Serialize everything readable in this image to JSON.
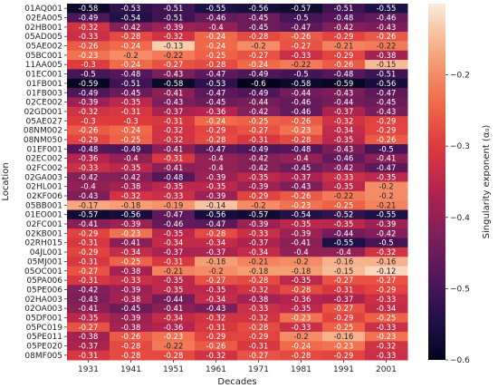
{
  "chart_data": {
    "type": "heatmap",
    "xlabel": "Decades",
    "ylabel": "Location",
    "colorbar_label": "Singularity exponent (α₀)",
    "colormap": "rocket",
    "value_range": [
      -0.6,
      -0.1
    ],
    "colorbar_ticks": [
      -0.2,
      -0.3,
      -0.4,
      -0.5,
      -0.6
    ],
    "columns": [
      "1931",
      "1941",
      "1951",
      "1961",
      "1971",
      "1981",
      "1991",
      "2001"
    ],
    "rows": [
      "01AQ001",
      "02EA005",
      "02HB001",
      "05AD005",
      "05AE002",
      "05BC001",
      "11AA005",
      "01EC001",
      "01FB001",
      "01FB003",
      "02CE002",
      "02GD001",
      "05AE027",
      "08NM002",
      "08NM050",
      "01EF001",
      "02EC002",
      "02FC002",
      "02GA003",
      "02HL001",
      "02KF006",
      "05BB001",
      "01EO001",
      "02FC001",
      "02KB001",
      "02RH015",
      "04JL001",
      "05MJ001",
      "05OC001",
      "05PA006",
      "05PE006",
      "02HA003",
      "02OA003",
      "05DF001",
      "05PC019",
      "05PE011",
      "05PE020",
      "08MF005"
    ],
    "values": [
      [
        -0.58,
        -0.53,
        -0.51,
        -0.55,
        -0.56,
        -0.57,
        -0.51,
        -0.55
      ],
      [
        -0.49,
        -0.54,
        -0.51,
        -0.46,
        -0.45,
        -0.5,
        -0.48,
        -0.46
      ],
      [
        -0.32,
        -0.42,
        -0.39,
        -0.4,
        -0.45,
        -0.47,
        -0.42,
        -0.43
      ],
      [
        -0.33,
        -0.28,
        -0.32,
        -0.24,
        -0.28,
        -0.26,
        -0.29,
        -0.26
      ],
      [
        -0.26,
        -0.24,
        -0.13,
        -0.24,
        -0.2,
        -0.27,
        -0.21,
        -0.22
      ],
      [
        -0.23,
        -0.2,
        -0.22,
        -0.25,
        -0.27,
        -0.33,
        -0.29,
        -0.38
      ],
      [
        -0.3,
        -0.24,
        -0.27,
        -0.28,
        -0.24,
        -0.22,
        -0.26,
        -0.15
      ],
      [
        -0.5,
        -0.48,
        -0.43,
        -0.47,
        -0.49,
        -0.5,
        -0.48,
        -0.51
      ],
      [
        -0.59,
        -0.51,
        -0.58,
        -0.53,
        -0.6,
        -0.58,
        -0.59,
        -0.56
      ],
      [
        -0.49,
        -0.45,
        -0.41,
        -0.47,
        -0.49,
        -0.44,
        -0.43,
        -0.47
      ],
      [
        -0.39,
        -0.35,
        -0.43,
        -0.45,
        -0.44,
        -0.46,
        -0.44,
        -0.45
      ],
      [
        -0.32,
        -0.31,
        -0.37,
        -0.36,
        -0.42,
        -0.46,
        -0.37,
        -0.43
      ],
      [
        -0.3,
        -0.3,
        -0.31,
        -0.24,
        -0.25,
        -0.26,
        -0.32,
        -0.29
      ],
      [
        -0.26,
        -0.24,
        -0.32,
        -0.29,
        -0.27,
        -0.23,
        -0.34,
        -0.29
      ],
      [
        -0.29,
        -0.25,
        -0.32,
        -0.28,
        -0.31,
        -0.28,
        -0.35,
        -0.26
      ],
      [
        -0.48,
        -0.49,
        -0.41,
        -0.47,
        -0.49,
        -0.48,
        -0.43,
        -0.5
      ],
      [
        -0.36,
        -0.4,
        -0.31,
        -0.4,
        -0.42,
        -0.4,
        -0.46,
        -0.41
      ],
      [
        -0.33,
        -0.35,
        -0.41,
        -0.4,
        -0.42,
        -0.45,
        -0.42,
        -0.47
      ],
      [
        -0.42,
        -0.42,
        -0.48,
        -0.39,
        -0.35,
        -0.37,
        -0.33,
        -0.35
      ],
      [
        -0.4,
        -0.38,
        -0.35,
        -0.35,
        -0.39,
        -0.43,
        -0.35,
        -0.2
      ],
      [
        -0.43,
        -0.32,
        -0.33,
        -0.39,
        -0.29,
        -0.26,
        -0.22,
        -0.2
      ],
      [
        -0.17,
        -0.18,
        -0.19,
        -0.14,
        -0.2,
        -0.23,
        -0.25,
        -0.21
      ],
      [
        -0.57,
        -0.56,
        -0.47,
        -0.56,
        -0.57,
        -0.54,
        -0.52,
        -0.55
      ],
      [
        -0.41,
        -0.39,
        -0.46,
        -0.47,
        -0.39,
        -0.35,
        -0.35,
        -0.39
      ],
      [
        -0.29,
        -0.23,
        -0.35,
        -0.28,
        -0.33,
        -0.39,
        -0.44,
        -0.42
      ],
      [
        -0.31,
        -0.41,
        -0.34,
        -0.34,
        -0.37,
        -0.41,
        -0.55,
        -0.5
      ],
      [
        -0.29,
        -0.34,
        -0.37,
        -0.37,
        -0.34,
        -0.4,
        -0.4,
        -0.32
      ],
      [
        -0.31,
        -0.25,
        -0.31,
        -0.18,
        -0.21,
        -0.2,
        -0.16,
        -0.16
      ],
      [
        -0.27,
        -0.38,
        -0.21,
        -0.2,
        -0.18,
        -0.18,
        -0.15,
        -0.12
      ],
      [
        -0.31,
        -0.33,
        -0.35,
        -0.27,
        -0.28,
        -0.35,
        -0.27,
        -0.27
      ],
      [
        -0.42,
        -0.39,
        -0.35,
        -0.35,
        -0.32,
        -0.28,
        -0.31,
        -0.29
      ],
      [
        -0.43,
        -0.38,
        -0.44,
        -0.34,
        -0.38,
        -0.36,
        -0.37,
        -0.33
      ],
      [
        -0.41,
        -0.45,
        -0.41,
        -0.43,
        -0.33,
        -0.35,
        -0.27,
        -0.34
      ],
      [
        -0.35,
        -0.39,
        -0.34,
        -0.32,
        -0.32,
        -0.23,
        -0.29,
        -0.25
      ],
      [
        -0.27,
        -0.38,
        -0.36,
        -0.31,
        -0.28,
        -0.33,
        -0.25,
        -0.33
      ],
      [
        -0.38,
        -0.26,
        -0.23,
        -0.29,
        -0.29,
        -0.2,
        -0.16,
        -0.23
      ],
      [
        -0.37,
        -0.28,
        -0.22,
        -0.26,
        -0.31,
        -0.24,
        -0.23,
        -0.32
      ],
      [
        -0.31,
        -0.28,
        -0.28,
        -0.32,
        -0.27,
        -0.28,
        -0.29,
        -0.33
      ]
    ]
  }
}
